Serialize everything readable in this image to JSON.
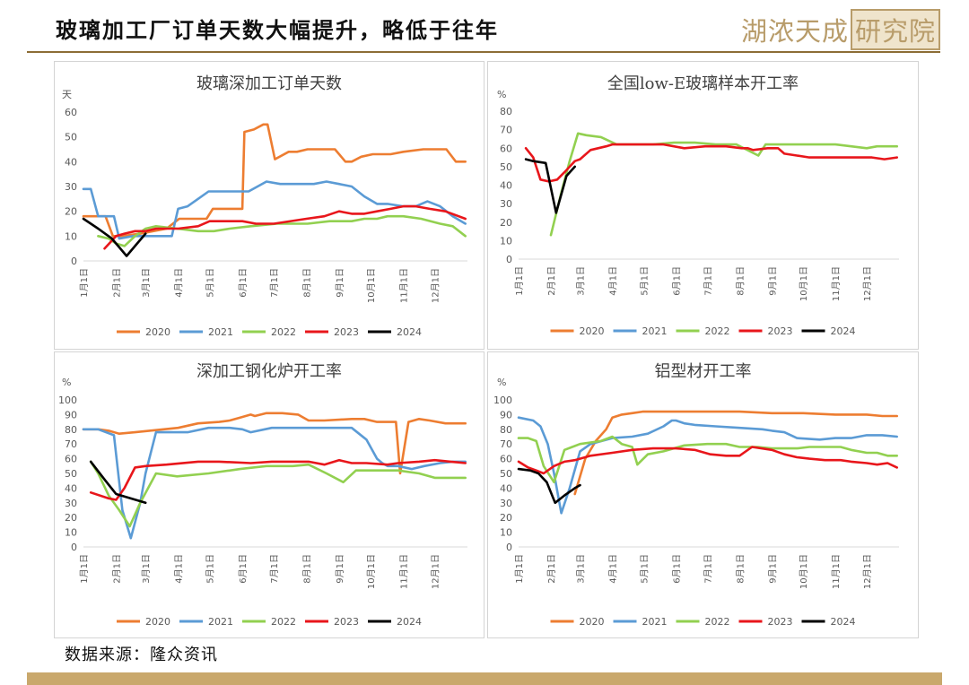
{
  "header": {
    "title": "玻璃加工厂订单天数大幅提升，略低于往年",
    "logo_main": "湖浓天成",
    "logo_box": "研究院"
  },
  "source": "数据来源：隆众资讯",
  "colors": {
    "2020": "#ed7d31",
    "2021": "#5b9bd5",
    "2022": "#92d050",
    "2023": "#e8161b",
    "2024": "#000000",
    "accent": "#8c6d36"
  },
  "chart_data": [
    {
      "type": "line",
      "title": "玻璃深加工订单天数",
      "unit": "天",
      "ylim": [
        0,
        60
      ],
      "yticks": [
        0,
        10,
        20,
        30,
        40,
        50,
        60
      ],
      "xlim": [
        1,
        366
      ],
      "categories": [
        "1月1日",
        "2月1日",
        "3月1日",
        "4月1日",
        "5月1日",
        "6月1日",
        "7月1日",
        "8月1日",
        "9月1日",
        "10月1日",
        "11月1日",
        "12月1日"
      ],
      "category_days": [
        1,
        32,
        60,
        91,
        121,
        152,
        182,
        213,
        244,
        274,
        305,
        335
      ],
      "legend": "bottom",
      "series": [
        {
          "name": "2020",
          "x": [
            1,
            22,
            29,
            38,
            55,
            80,
            92,
            118,
            124,
            142,
            152,
            154,
            163,
            172,
            176,
            183,
            196,
            204,
            214,
            226,
            240,
            250,
            256,
            265,
            276,
            293,
            305,
            324,
            338,
            346,
            355,
            364
          ],
          "y": [
            18,
            18,
            10,
            10,
            11,
            13,
            17,
            17,
            21,
            21,
            21,
            52,
            53,
            55,
            55,
            41,
            44,
            44,
            45,
            45,
            45,
            40,
            40,
            42,
            43,
            43,
            44,
            45,
            45,
            45,
            40,
            40
          ]
        },
        {
          "name": "2021",
          "x": [
            1,
            8,
            15,
            30,
            35,
            48,
            60,
            70,
            85,
            91,
            100,
            110,
            120,
            138,
            150,
            158,
            175,
            188,
            213,
            220,
            232,
            244,
            256,
            268,
            280,
            290,
            305,
            317,
            328,
            340,
            352,
            364
          ],
          "y": [
            29,
            29,
            18,
            18,
            9,
            10,
            10,
            10,
            10,
            21,
            22,
            25,
            28,
            28,
            28,
            28,
            32,
            31,
            31,
            31,
            32,
            31,
            30,
            26,
            23,
            23,
            22,
            22,
            24,
            22,
            18,
            15
          ]
        },
        {
          "name": "2022",
          "x": [
            15,
            25,
            32,
            40,
            50,
            60,
            70,
            90,
            110,
            125,
            140,
            160,
            185,
            214,
            235,
            256,
            268,
            280,
            290,
            305,
            322,
            340,
            352,
            364
          ],
          "y": [
            10,
            9,
            7,
            6,
            10,
            13,
            14,
            13,
            12,
            12,
            13,
            14,
            15,
            15,
            16,
            16,
            17,
            17,
            18,
            18,
            17,
            15,
            14,
            10
          ]
        },
        {
          "name": "2023",
          "x": [
            21,
            32,
            40,
            50,
            60,
            70,
            91,
            110,
            121,
            152,
            165,
            182,
            213,
            230,
            244,
            256,
            268,
            280,
            293,
            305,
            317,
            330,
            345,
            364
          ],
          "y": [
            5,
            10,
            11,
            12,
            12,
            13,
            13,
            14,
            16,
            16,
            15,
            15,
            17,
            18,
            20,
            19,
            19,
            20,
            21,
            22,
            22,
            21,
            20,
            17
          ]
        },
        {
          "name": "2024",
          "x": [
            1,
            15,
            28,
            42,
            50,
            60
          ],
          "y": [
            17,
            13,
            9,
            2,
            6,
            11
          ]
        }
      ]
    },
    {
      "type": "line",
      "title": "全国low-E玻璃样本开工率",
      "unit": "%",
      "ylim": [
        0,
        80
      ],
      "yticks": [
        0,
        10,
        20,
        30,
        40,
        50,
        60,
        70,
        80
      ],
      "xlim": [
        1,
        366
      ],
      "categories": [
        "1月1日",
        "2月1日",
        "3月1日",
        "4月1日",
        "5月1日",
        "6月1日",
        "7月1日",
        "8月1日",
        "9月1日",
        "10月1日",
        "11月1日",
        "12月1日"
      ],
      "category_days": [
        1,
        32,
        60,
        91,
        121,
        152,
        182,
        213,
        244,
        274,
        305,
        335
      ],
      "legend": "bottom",
      "series": [
        {
          "name": "2020",
          "x": [],
          "y": []
        },
        {
          "name": "2021",
          "x": [],
          "y": []
        },
        {
          "name": "2022",
          "x": [
            32,
            42,
            50,
            58,
            66,
            80,
            95,
            110,
            130,
            150,
            170,
            190,
            210,
            224,
            231,
            238,
            244,
            255,
            268,
            285,
            305,
            320,
            335,
            345,
            355,
            364
          ],
          "y": [
            13,
            36,
            53,
            68,
            67,
            66,
            62,
            62,
            62,
            63,
            63,
            62,
            62,
            58,
            56,
            62,
            62,
            62,
            62,
            62,
            62,
            61,
            60,
            61,
            61,
            61
          ]
        },
        {
          "name": "2023",
          "x": [
            8,
            15,
            22,
            30,
            38,
            45,
            55,
            60,
            70,
            85,
            91,
            110,
            130,
            140,
            160,
            180,
            200,
            215,
            221,
            226,
            240,
            250,
            256,
            268,
            280,
            300,
            320,
            340,
            352,
            364
          ],
          "y": [
            60,
            55,
            43,
            42,
            43,
            47,
            53,
            54,
            59,
            61,
            62,
            62,
            62,
            62,
            60,
            61,
            61,
            60,
            60,
            59,
            60,
            60,
            57,
            56,
            55,
            55,
            55,
            55,
            54,
            55
          ]
        },
        {
          "name": "2024",
          "x": [
            8,
            15,
            27,
            37,
            47,
            55
          ],
          "y": [
            54,
            53,
            52,
            25,
            45,
            50
          ]
        }
      ]
    },
    {
      "type": "line",
      "title": "深加工钢化炉开工率",
      "unit": "%",
      "ylim": [
        0,
        100
      ],
      "yticks": [
        0,
        10,
        20,
        30,
        40,
        50,
        60,
        70,
        80,
        90,
        100
      ],
      "xlim": [
        1,
        366
      ],
      "categories": [
        "1月1日",
        "2月1日",
        "3月1日",
        "4月1日",
        "5月1日",
        "6月1日",
        "7月1日",
        "8月1日",
        "9月1日",
        "10月1日",
        "11月1日",
        "12月1日"
      ],
      "category_days": [
        1,
        32,
        60,
        91,
        121,
        152,
        182,
        213,
        244,
        274,
        305,
        335
      ],
      "legend": "bottom",
      "series": [
        {
          "name": "2020",
          "x": [
            1,
            15,
            25,
            35,
            50,
            91,
            110,
            130,
            140,
            150,
            160,
            164,
            175,
            190,
            205,
            215,
            230,
            256,
            268,
            280,
            290,
            298,
            302,
            310,
            320,
            330,
            345,
            364
          ],
          "y": [
            80,
            80,
            79,
            77,
            78,
            81,
            84,
            85,
            86,
            88,
            90,
            89,
            91,
            91,
            90,
            86,
            86,
            87,
            87,
            85,
            85,
            85,
            50,
            85,
            87,
            86,
            84,
            84
          ]
        },
        {
          "name": "2021",
          "x": [
            1,
            15,
            30,
            38,
            46,
            55,
            60,
            70,
            91,
            100,
            120,
            140,
            152,
            160,
            180,
            200,
            220,
            248,
            256,
            270,
            280,
            285,
            290,
            300,
            313,
            325,
            340,
            352,
            364
          ],
          "y": [
            80,
            80,
            76,
            25,
            6,
            30,
            50,
            78,
            78,
            78,
            81,
            81,
            80,
            78,
            81,
            81,
            81,
            81,
            81,
            73,
            60,
            57,
            55,
            55,
            53,
            55,
            57,
            58,
            58
          ]
        },
        {
          "name": "2022",
          "x": [
            8,
            15,
            25,
            35,
            45,
            55,
            70,
            90,
            120,
            150,
            175,
            200,
            215,
            232,
            248,
            260,
            290,
            300,
            320,
            335,
            350,
            364
          ],
          "y": [
            58,
            50,
            35,
            25,
            14,
            30,
            50,
            48,
            50,
            53,
            55,
            55,
            56,
            50,
            44,
            52,
            52,
            52,
            50,
            47,
            47,
            47
          ]
        },
        {
          "name": "2023",
          "x": [
            8,
            25,
            32,
            40,
            50,
            60,
            80,
            110,
            130,
            160,
            180,
            200,
            215,
            230,
            244,
            256,
            270,
            290,
            300,
            320,
            335,
            350,
            364
          ],
          "y": [
            37,
            33,
            32,
            40,
            54,
            55,
            56,
            58,
            58,
            57,
            58,
            58,
            58,
            56,
            59,
            57,
            57,
            56,
            57,
            58,
            59,
            58,
            57
          ]
        },
        {
          "name": "2024",
          "x": [
            8,
            22,
            32,
            60
          ],
          "y": [
            58,
            45,
            36,
            30
          ]
        }
      ]
    },
    {
      "type": "line",
      "title": "铝型材开工率",
      "unit": "%",
      "ylim": [
        0,
        100
      ],
      "yticks": [
        0,
        10,
        20,
        30,
        40,
        50,
        60,
        70,
        80,
        90,
        100
      ],
      "xlim": [
        1,
        366
      ],
      "categories": [
        "1月1日",
        "2月1日",
        "3月1日",
        "4月1日",
        "5月1日",
        "6月1日",
        "7月1日",
        "8月1日",
        "9月1日",
        "10月1日",
        "11月1日",
        "12月1日"
      ],
      "category_days": [
        1,
        32,
        60,
        91,
        121,
        152,
        182,
        213,
        244,
        274,
        305,
        335
      ],
      "legend": "bottom",
      "series": [
        {
          "name": "2020",
          "x": [
            55,
            65,
            75,
            85,
            91,
            100,
            110,
            120,
            140,
            160,
            180,
            213,
            244,
            274,
            305,
            335,
            350,
            364
          ],
          "y": [
            36,
            60,
            72,
            80,
            88,
            90,
            91,
            92,
            92,
            92,
            92,
            92,
            91,
            91,
            90,
            90,
            89,
            89
          ]
        },
        {
          "name": "2021",
          "x": [
            1,
            15,
            22,
            29,
            35,
            42,
            50,
            60,
            70,
            91,
            110,
            125,
            140,
            148,
            152,
            160,
            170,
            190,
            213,
            235,
            244,
            256,
            268,
            290,
            305,
            320,
            335,
            350,
            364
          ],
          "y": [
            88,
            86,
            82,
            70,
            50,
            23,
            40,
            65,
            70,
            74,
            75,
            77,
            82,
            86,
            86,
            84,
            83,
            82,
            81,
            80,
            79,
            78,
            74,
            73,
            74,
            74,
            76,
            76,
            75
          ]
        },
        {
          "name": "2022",
          "x": [
            1,
            10,
            18,
            25,
            35,
            45,
            60,
            80,
            91,
            100,
            110,
            115,
            125,
            140,
            160,
            182,
            200,
            213,
            230,
            244,
            268,
            280,
            295,
            310,
            320,
            335,
            345,
            355,
            364
          ],
          "y": [
            74,
            74,
            72,
            55,
            44,
            66,
            70,
            72,
            75,
            70,
            68,
            56,
            63,
            65,
            69,
            70,
            70,
            68,
            68,
            67,
            67,
            68,
            68,
            68,
            66,
            64,
            64,
            62,
            62
          ]
        },
        {
          "name": "2023",
          "x": [
            1,
            10,
            18,
            25,
            35,
            45,
            55,
            70,
            91,
            110,
            130,
            152,
            170,
            185,
            200,
            213,
            225,
            244,
            256,
            268,
            280,
            295,
            310,
            320,
            335,
            345,
            355,
            364
          ],
          "y": [
            58,
            54,
            52,
            50,
            55,
            58,
            59,
            62,
            64,
            66,
            67,
            67,
            66,
            63,
            62,
            62,
            68,
            66,
            63,
            61,
            60,
            59,
            59,
            58,
            57,
            56,
            57,
            54
          ]
        },
        {
          "name": "2024",
          "x": [
            1,
            12,
            20,
            28,
            36,
            45,
            55,
            60
          ],
          "y": [
            53,
            52,
            50,
            44,
            30,
            35,
            40,
            42
          ]
        }
      ]
    }
  ]
}
